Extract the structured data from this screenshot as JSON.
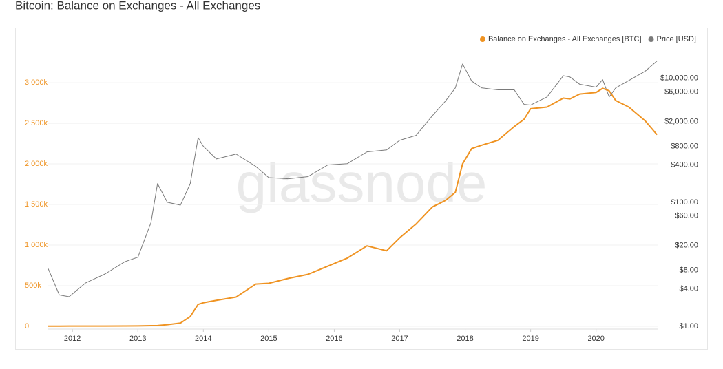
{
  "chart_data": {
    "type": "line",
    "title": "Bitcoin: Balance on Exchanges - All Exchanges",
    "watermark": "glassnode",
    "x": [
      2011.63,
      2011.8,
      2011.95,
      2012.2,
      2012.5,
      2012.8,
      2013.0,
      2013.2,
      2013.3,
      2013.45,
      2013.65,
      2013.8,
      2013.92,
      2014.0,
      2014.2,
      2014.5,
      2014.8,
      2015.0,
      2015.3,
      2015.6,
      2015.9,
      2016.2,
      2016.5,
      2016.8,
      2017.0,
      2017.25,
      2017.5,
      2017.7,
      2017.85,
      2017.96,
      2018.1,
      2018.25,
      2018.5,
      2018.75,
      2018.9,
      2019.0,
      2019.25,
      2019.5,
      2019.6,
      2019.75,
      2020.0,
      2020.1,
      2020.2,
      2020.3,
      2020.5,
      2020.75,
      2020.93
    ],
    "xlim": [
      2011.63,
      2020.95
    ],
    "xticks": [
      2012,
      2013,
      2014,
      2015,
      2016,
      2017,
      2018,
      2019,
      2020
    ],
    "ylim": [
      0,
      3450000
    ],
    "yticks": [
      0,
      {
        "value": 500000,
        "label": "500k"
      },
      {
        "value": 1000000,
        "label": "1 000k"
      },
      {
        "value": 1500000,
        "label": "1 500k"
      },
      {
        "value": 2000000,
        "label": "2 000k"
      },
      {
        "value": 2500000,
        "label": "2 500k"
      },
      {
        "value": 3000000,
        "label": "3 000k"
      }
    ],
    "y2lim": [
      1,
      33000
    ],
    "y2scale": "log",
    "y2ticks": [
      {
        "value": 1,
        "label": "$1.00"
      },
      {
        "value": 4,
        "label": "$4.00"
      },
      {
        "value": 8,
        "label": "$8.00"
      },
      {
        "value": 20,
        "label": "$20.00"
      },
      {
        "value": 60,
        "label": "$60.00"
      },
      {
        "value": 100,
        "label": "$100.00"
      },
      {
        "value": 400,
        "label": "$400.00"
      },
      {
        "value": 800,
        "label": "$800.00"
      },
      {
        "value": 2000,
        "label": "$2,000.00"
      },
      {
        "value": 6000,
        "label": "$6,000.00"
      },
      {
        "value": 10000,
        "label": "$10,000.00"
      }
    ],
    "grid": true,
    "legend": "top-right",
    "series": [
      {
        "name": "Balance on Exchanges - All Exchanges [BTC]",
        "color": "#ef9322",
        "axis": "y",
        "values": [
          2000,
          2500,
          3000,
          3000,
          3500,
          4000,
          5000,
          8000,
          10000,
          20000,
          40000,
          120000,
          270000,
          290000,
          320000,
          360000,
          520000,
          530000,
          590000,
          640000,
          740000,
          840000,
          990000,
          930000,
          1090000,
          1260000,
          1470000,
          1550000,
          1650000,
          2000000,
          2190000,
          2230000,
          2290000,
          2460000,
          2550000,
          2680000,
          2700000,
          2810000,
          2800000,
          2860000,
          2880000,
          2930000,
          2900000,
          2780000,
          2700000,
          2530000,
          2360000
        ]
      },
      {
        "name": "Price [USD]",
        "color": "#7a7a7a",
        "axis": "y2",
        "values": [
          8.5,
          3.2,
          3.0,
          5,
          7,
          11,
          13,
          47,
          200,
          100,
          90,
          200,
          1100,
          800,
          500,
          600,
          380,
          250,
          240,
          260,
          400,
          420,
          650,
          700,
          1000,
          1200,
          2500,
          4300,
          7000,
          17000,
          9000,
          7000,
          6500,
          6500,
          3800,
          3700,
          5000,
          11000,
          10500,
          8000,
          7200,
          9500,
          5000,
          7000,
          9200,
          13000,
          19000
        ]
      }
    ]
  }
}
